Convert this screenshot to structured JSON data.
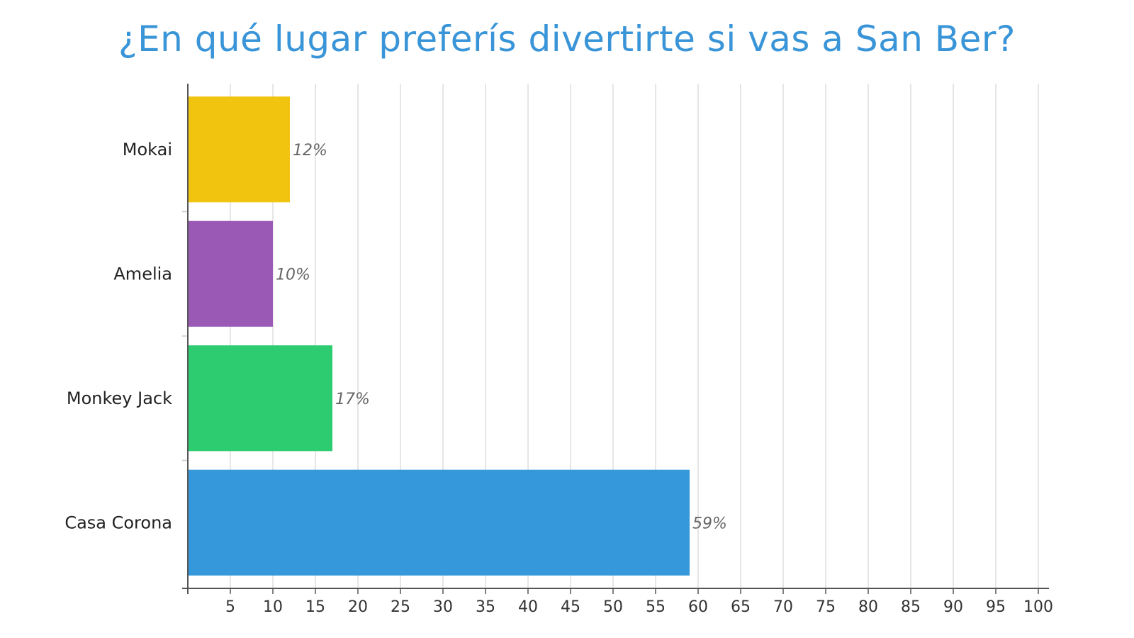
{
  "chart_data": {
    "type": "bar",
    "orientation": "horizontal",
    "title": "¿En qué lugar preferís divertirte si vas a San Ber?",
    "categories": [
      "Mokai",
      "Amelia",
      "Monkey Jack",
      "Casa Corona"
    ],
    "values": [
      12,
      10,
      17,
      59
    ],
    "value_labels": [
      "12%",
      "10%",
      "17%",
      "59%"
    ],
    "colors": [
      "#f1c40f",
      "#9b59b6",
      "#2ecc71",
      "#3498db"
    ],
    "xlim": [
      0,
      100
    ],
    "xticks": [
      5,
      10,
      15,
      20,
      25,
      30,
      35,
      40,
      45,
      50,
      55,
      60,
      65,
      70,
      75,
      80,
      85,
      90,
      95,
      100
    ],
    "xlabel": "",
    "ylabel": "",
    "grid": "vertical",
    "grid_color": "#dddddd",
    "axis_color": "#555555"
  }
}
